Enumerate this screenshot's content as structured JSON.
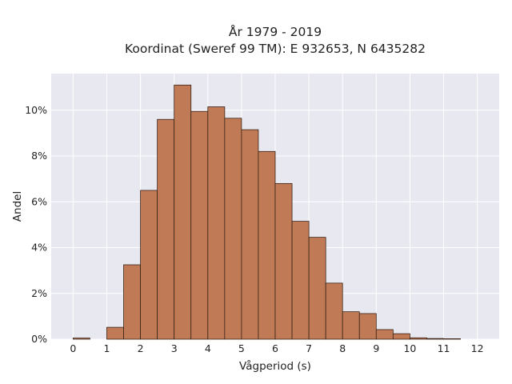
{
  "chart_data": {
    "type": "bar",
    "title": [
      "År 1979 - 2019",
      "Koordinat (Sweref 99 TM): E 932653, N 6435282"
    ],
    "xlabel": "Vågperiod (s)",
    "ylabel": "Andel",
    "xlim": [
      -0.65,
      12.65
    ],
    "ylim": [
      0,
      11.6
    ],
    "xticks": [
      0,
      1,
      2,
      3,
      4,
      5,
      6,
      7,
      8,
      9,
      10,
      11,
      12
    ],
    "xtick_labels": [
      "0",
      "1",
      "2",
      "3",
      "4",
      "5",
      "6",
      "7",
      "8",
      "9",
      "10",
      "11",
      "12"
    ],
    "yticks": [
      0,
      2,
      4,
      6,
      8,
      10
    ],
    "ytick_labels": [
      "0%",
      "2%",
      "4%",
      "6%",
      "8%",
      "10%"
    ],
    "bin_width": 0.5,
    "bins": [
      {
        "start": 0.0,
        "value": 0.05
      },
      {
        "start": 0.5,
        "value": 0.0
      },
      {
        "start": 1.0,
        "value": 0.52
      },
      {
        "start": 1.5,
        "value": 3.25
      },
      {
        "start": 2.0,
        "value": 6.5
      },
      {
        "start": 2.5,
        "value": 9.6
      },
      {
        "start": 3.0,
        "value": 11.1
      },
      {
        "start": 3.5,
        "value": 9.95
      },
      {
        "start": 4.0,
        "value": 10.15
      },
      {
        "start": 4.5,
        "value": 9.65
      },
      {
        "start": 5.0,
        "value": 9.15
      },
      {
        "start": 5.5,
        "value": 8.2
      },
      {
        "start": 6.0,
        "value": 6.8
      },
      {
        "start": 6.5,
        "value": 5.15
      },
      {
        "start": 7.0,
        "value": 4.45
      },
      {
        "start": 7.5,
        "value": 2.45
      },
      {
        "start": 8.0,
        "value": 1.2
      },
      {
        "start": 8.5,
        "value": 1.12
      },
      {
        "start": 9.0,
        "value": 0.42
      },
      {
        "start": 9.5,
        "value": 0.24
      },
      {
        "start": 10.0,
        "value": 0.06
      },
      {
        "start": 10.5,
        "value": 0.03
      },
      {
        "start": 11.0,
        "value": 0.02
      }
    ],
    "grid": true,
    "colors": {
      "bar_fill": "#c07a55",
      "bar_edge": "#3a2418",
      "plot_bg": "#e8e8f0",
      "grid": "#ffffff"
    }
  }
}
